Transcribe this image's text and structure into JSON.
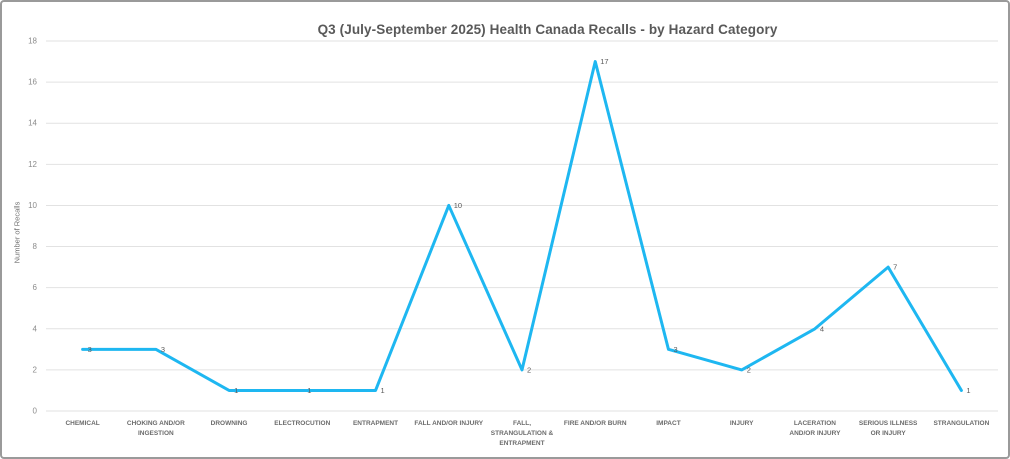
{
  "chart_data": {
    "type": "line",
    "title": "Q3 (July-September 2025) Health Canada Recalls - by Hazard Category",
    "xlabel": "",
    "ylabel": "Number of Recalls",
    "categories": [
      "CHEMICAL",
      "CHOKING AND/OR INGESTION",
      "DROWNING",
      "ELECTROCUTION",
      "ENTRAPMENT",
      "FALL AND/OR INJURY",
      "FALL, STRANGULATION & ENTRAPMENT",
      "FIRE AND/OR BURN",
      "IMPACT",
      "INJURY",
      "LACERATION AND/OR INJURY",
      "SERIOUS ILLNESS OR INJURY",
      "STRANGULATION"
    ],
    "values": [
      3,
      3,
      1,
      1,
      1,
      10,
      2,
      17,
      3,
      2,
      4,
      7,
      1
    ],
    "ylim": [
      0,
      18
    ],
    "ytick_step": 2,
    "grid": true,
    "legend_position": "none",
    "data_labels": true,
    "data_label_position": "right"
  },
  "colors": {
    "line": "#1eb7f1",
    "gridline": "#e2e2e2",
    "tick_label": "#8c8c8c",
    "data_label": "#595959",
    "title": "#595959",
    "axis_label": "#6b6b6b"
  }
}
